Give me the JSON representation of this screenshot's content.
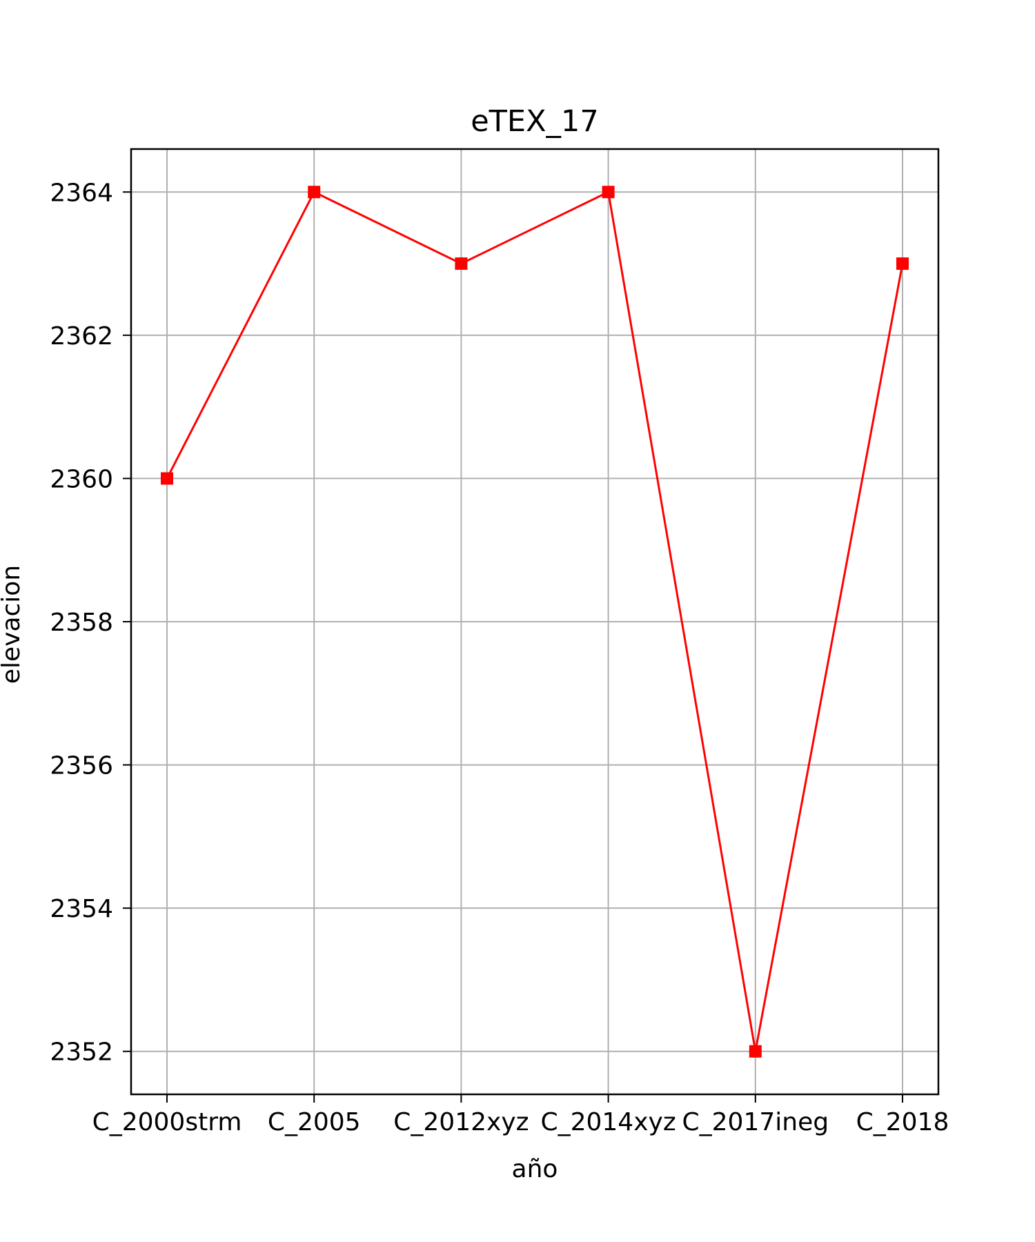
{
  "chart_data": {
    "type": "line",
    "title": "eTEX_17",
    "xlabel": "año",
    "ylabel": "elevacion",
    "categories": [
      "C_2000strm",
      "C_2005",
      "C_2012xyz",
      "C_2014xyz",
      "C_2017ineg",
      "C_2018"
    ],
    "series": [
      {
        "values": [
          2360,
          2364,
          2363,
          2364,
          2352,
          2363
        ],
        "color": "#ff0000",
        "marker": "square"
      }
    ],
    "ylim": [
      2351.4,
      2364.6
    ],
    "yticks": [
      2352,
      2354,
      2356,
      2358,
      2360,
      2362,
      2364
    ],
    "grid": true,
    "grid_color": "#b0b0b0",
    "legend": false
  }
}
